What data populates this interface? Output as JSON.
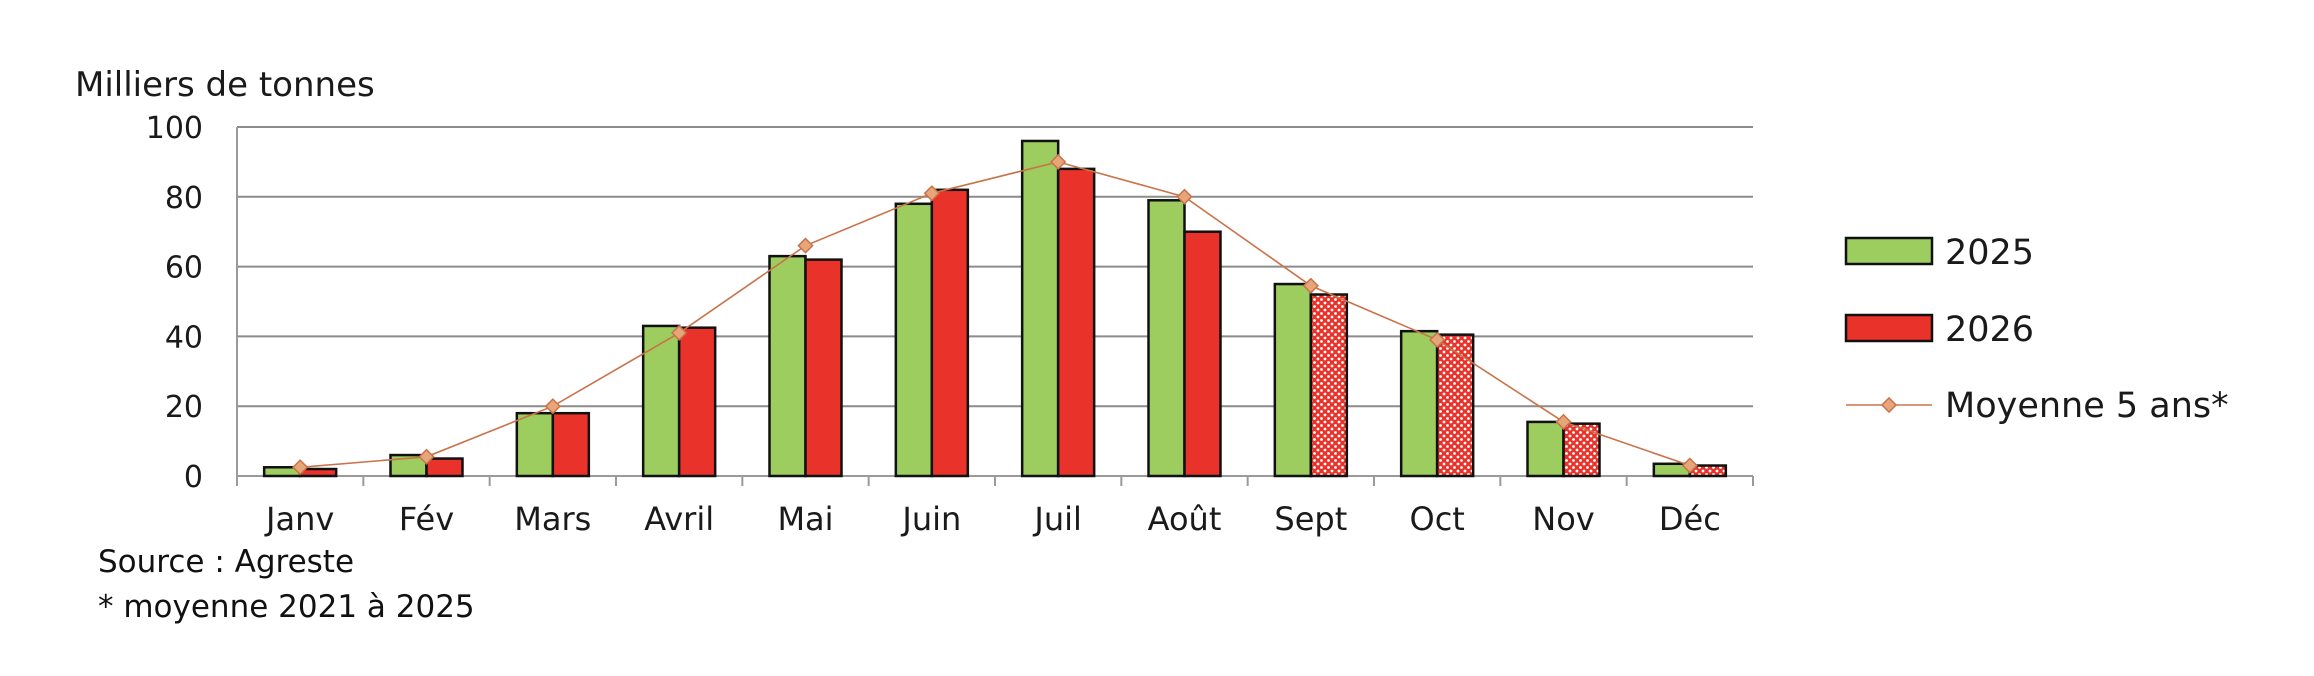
{
  "chart_data": {
    "type": "bar",
    "ylabel": "Milliers de tonnes",
    "ylim": [
      0,
      100
    ],
    "yticks": [
      0,
      20,
      40,
      60,
      80,
      100
    ],
    "grid": true,
    "legend_position": "right",
    "categories": [
      "Janv",
      "Fév",
      "Mars",
      "Avril",
      "Mai",
      "Juin",
      "Juil",
      "Août",
      "Sept",
      "Oct",
      "Nov",
      "Déc"
    ],
    "series": [
      {
        "name": "2025",
        "kind": "bar",
        "color": "#9dcc5f",
        "values": [
          2.5,
          6,
          18,
          43,
          63,
          78,
          96,
          79,
          55,
          41.5,
          15.5,
          3.5
        ]
      },
      {
        "name": "2026",
        "kind": "bar",
        "color": "#e8322a",
        "values": [
          2,
          5,
          18,
          42.5,
          62,
          82,
          88,
          70,
          52,
          40.5,
          15,
          3
        ],
        "patterned_from_index": 8
      },
      {
        "name": "Moyenne 5 ans*",
        "kind": "line",
        "color": "#c9734a",
        "marker_color": "#e6a679",
        "values": [
          2.5,
          5.5,
          20,
          41,
          66,
          81,
          90,
          80,
          54.5,
          39,
          15.5,
          3
        ]
      }
    ]
  },
  "notes": {
    "source": "Source : Agreste",
    "footnote": "* moyenne 2021 à 2025"
  }
}
